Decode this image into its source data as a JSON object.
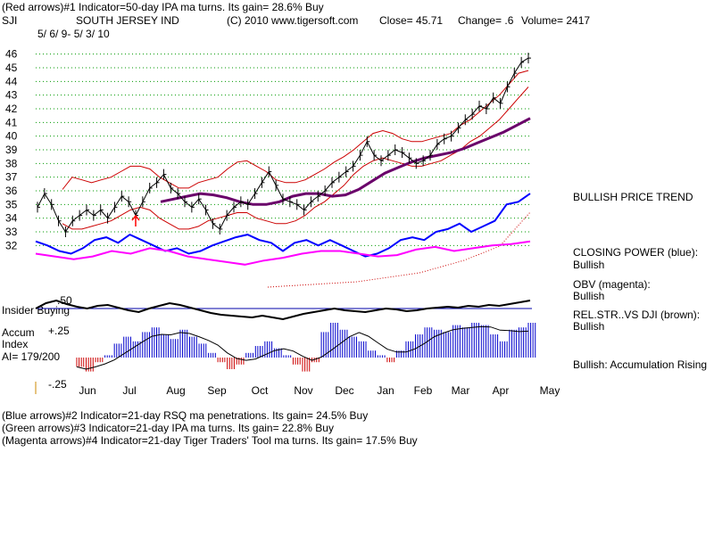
{
  "header": {
    "line1": "(Red arrows)#1 Indicator=50-day IPA ma turns. Its gain= 28.6% Buy",
    "symbol": "SJI",
    "company": "SOUTH JERSEY IND",
    "copyright": "(C) 2010 www.tigersoft.com",
    "close": "Close=  45.71",
    "change": "Change= .6",
    "volume": "Volume= 2417",
    "date_range": "5/ 6/ 9- 5/ 3/ 10"
  },
  "right_panel": {
    "bullish_trend": "BULLISH PRICE TREND",
    "closing_power_label": "CLOSING POWER (blue):",
    "closing_power_status": "Bullish",
    "obv_label": "OBV (magenta):",
    "obv_status": "Bullish",
    "relstr_label": "REL.STR..VS DJI (brown):",
    "relstr_status": "Bullish",
    "accum_status": "Bullish: Accumulation Rising"
  },
  "lower_panel": {
    "insider_label": "Insider Buying",
    "accum_label1": "Accum",
    "accum_label2": "Index",
    "ai_label": "AI= 179/200",
    "level_50": ".50",
    "level_25": "+.25",
    "level_neg25": "-.25"
  },
  "footer": {
    "line1": "(Blue arrows)#2 Indicator=21-day RSQ ma penetrations. Its gain= 24.5% Buy",
    "line2": "(Green arrows)#3 Indicator=21-day IPA ma turns. Its gain= 22.8% Buy",
    "line3": "(Magenta arrows)#4 Indicator=21-day Tiger Traders' Tool ma turns. Its gain= 17.5% Buy"
  },
  "colors": {
    "price_bars": "#000000",
    "bands": "#cc0000",
    "moving_average": "#6a006a",
    "closing_power": "#0000ff",
    "obv": "#ff00ff",
    "rel_strength": "#000000",
    "accum_pos": "#0000cc",
    "accum_neg": "#cc0000",
    "grid": "#009900"
  },
  "chart_data": {
    "type": "line",
    "title": "SOUTH JERSEY IND",
    "x_labels": [
      "Jun",
      "Jul",
      "Aug",
      "Sep",
      "Oct",
      "Nov",
      "Dec",
      "Jan",
      "Feb",
      "Mar",
      "Apr",
      "May"
    ],
    "y_ticks": [
      32,
      33,
      34,
      35,
      36,
      37,
      38,
      39,
      40,
      41,
      42,
      43,
      44,
      45,
      46
    ],
    "ylim": [
      31.5,
      46.5
    ],
    "grid": true,
    "price": [
      34.8,
      35.8,
      35.0,
      33.8,
      33.0,
      33.8,
      34.2,
      34.6,
      34.2,
      34.6,
      34.0,
      34.8,
      35.6,
      35.2,
      34.2,
      35.2,
      36.2,
      36.6,
      37.2,
      36.2,
      35.8,
      35.2,
      34.8,
      35.4,
      34.6,
      33.6,
      33.2,
      34.2,
      34.8,
      35.2,
      35.0,
      35.8,
      36.6,
      37.4,
      36.4,
      35.4,
      35.2,
      35.0,
      34.6,
      35.2,
      35.6,
      36.0,
      36.6,
      37.0,
      37.4,
      37.8,
      38.6,
      39.6,
      38.6,
      38.2,
      38.6,
      39.0,
      38.8,
      38.4,
      38.0,
      38.2,
      38.6,
      39.4,
      39.8,
      40.0,
      40.6,
      41.2,
      41.6,
      42.2,
      42.0,
      42.8,
      42.4,
      43.6,
      44.6,
      45.4,
      45.71
    ],
    "upper_band": [
      36.1,
      37.0,
      36.8,
      36.6,
      36.8,
      37.0,
      37.4,
      37.8,
      37.8,
      37.6,
      37.0,
      36.6,
      36.2,
      36.2,
      36.6,
      36.8,
      37.0,
      37.6,
      38.1,
      38.2,
      37.8,
      37.4,
      36.8,
      36.6,
      36.6,
      36.8,
      37.2,
      37.6,
      38.1,
      38.5,
      39.0,
      39.6,
      40.2,
      40.4,
      40.2,
      39.8,
      39.6,
      39.6,
      39.8,
      40.0,
      40.2,
      40.8,
      41.2,
      41.8,
      42.4,
      43.0,
      43.8,
      44.6,
      44.8
    ],
    "lower_band": [
      33.6,
      33.2,
      33.2,
      33.4,
      33.6,
      33.8,
      34.2,
      34.6,
      34.8,
      34.6,
      34.0,
      33.6,
      33.2,
      33.2,
      33.4,
      33.8,
      34.0,
      34.2,
      34.4,
      34.4,
      34.0,
      33.8,
      33.6,
      33.6,
      33.8,
      34.2,
      34.8,
      35.2,
      35.8,
      36.4,
      37.2,
      37.8,
      38.2,
      38.4,
      38.2,
      38.0,
      37.8,
      37.8,
      38.0,
      38.2,
      38.6,
      39.0,
      39.6,
      40.0,
      40.6,
      41.2,
      42.0,
      42.8,
      43.6
    ],
    "moving_average": [
      35.2,
      35.4,
      35.6,
      35.8,
      35.7,
      35.5,
      35.2,
      35.0,
      35.0,
      35.2,
      35.6,
      35.8,
      35.8,
      35.6,
      35.7,
      36.1,
      36.7,
      37.3,
      37.7,
      38.1,
      38.4,
      38.6,
      38.8,
      39.1,
      39.5,
      39.9,
      40.3,
      40.8,
      41.3
    ],
    "closing_power": [
      32.3,
      32.0,
      31.6,
      31.4,
      31.8,
      32.4,
      32.6,
      32.2,
      32.8,
      32.4,
      32.0,
      31.6,
      31.8,
      31.4,
      31.6,
      32.0,
      32.3,
      32.6,
      32.8,
      32.4,
      32.2,
      31.6,
      32.2,
      32.4,
      32.0,
      32.4,
      32.0,
      31.6,
      31.2,
      31.4,
      31.8,
      32.4,
      32.6,
      32.4,
      33.0,
      33.2,
      33.6,
      33.0,
      33.4,
      33.8,
      35.0,
      35.2,
      35.8
    ],
    "obv": [
      31.4,
      31.2,
      31.0,
      31.2,
      31.6,
      31.4,
      31.8,
      31.6,
      31.2,
      31.0,
      30.8,
      30.6,
      30.9,
      31.1,
      31.4,
      31.6,
      31.6,
      31.4,
      31.2,
      31.3,
      31.7,
      31.9,
      31.6,
      31.8,
      32.0,
      32.1,
      32.3
    ],
    "accumulation": [
      -0.08,
      -0.12,
      -0.04,
      0.02,
      0.12,
      0.18,
      0.14,
      0.22,
      0.26,
      0.2,
      0.16,
      0.24,
      0.18,
      0.12,
      0.04,
      -0.04,
      -0.1,
      -0.06,
      0.04,
      0.1,
      0.14,
      0.08,
      0.02,
      -0.06,
      -0.12,
      -0.04,
      0.22,
      0.3,
      0.24,
      0.18,
      0.14,
      0.06,
      0.02,
      -0.04,
      0.06,
      0.14,
      0.2,
      0.26,
      0.24,
      0.22,
      0.28,
      0.26,
      0.3,
      0.28,
      0.2,
      0.14,
      0.24,
      0.26,
      0.3
    ]
  }
}
